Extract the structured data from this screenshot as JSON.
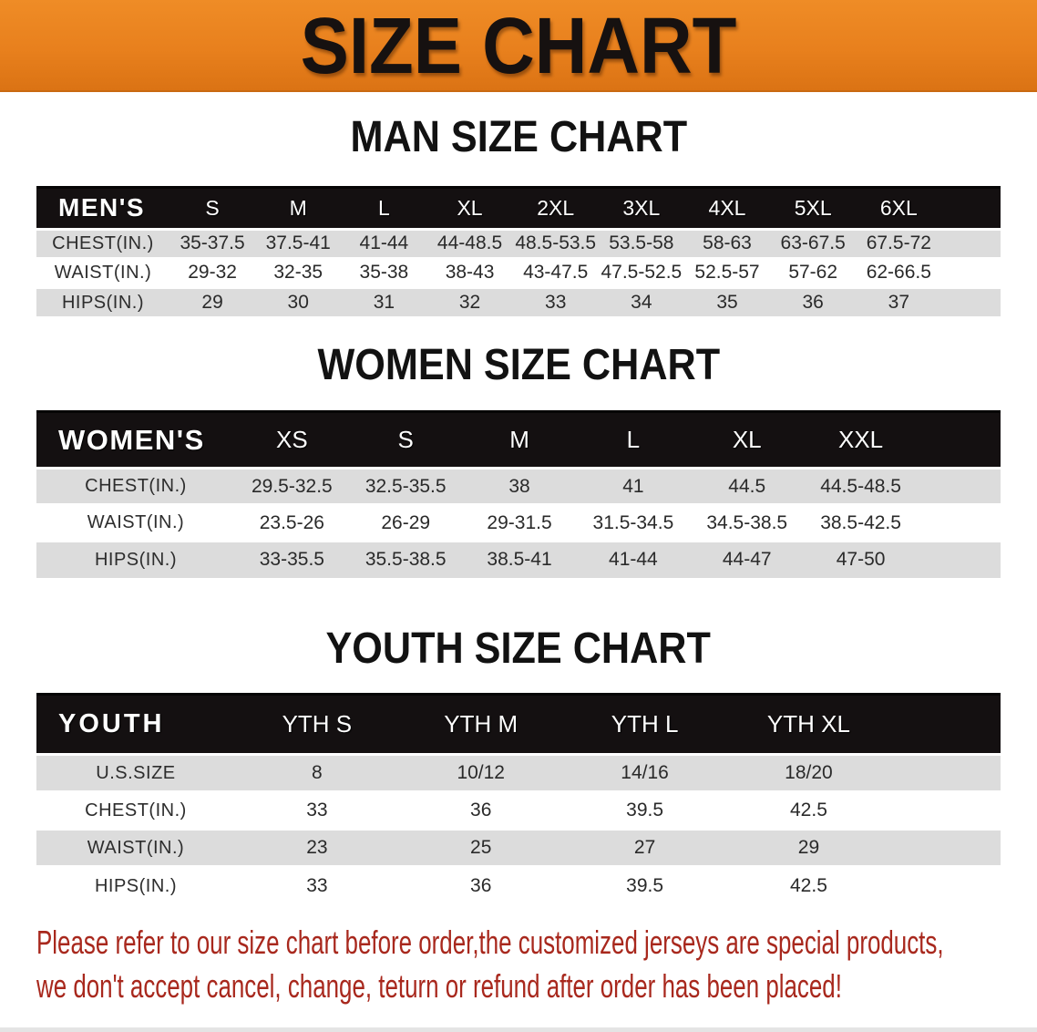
{
  "banner": {
    "title": "SIZE CHART"
  },
  "sections": {
    "man": {
      "heading": "MAN SIZE CHART",
      "header_label": "MEN'S",
      "sizes": [
        "S",
        "M",
        "L",
        "XL",
        "2XL",
        "3XL",
        "4XL",
        "5XL",
        "6XL"
      ],
      "rows": [
        {
          "label": "CHEST(IN.)",
          "values": [
            "35-37.5",
            "37.5-41",
            "41-44",
            "44-48.5",
            "48.5-53.5",
            "53.5-58",
            "58-63",
            "63-67.5",
            "67.5-72"
          ]
        },
        {
          "label": "WAIST(IN.)",
          "values": [
            "29-32",
            "32-35",
            "35-38",
            "38-43",
            "43-47.5",
            "47.5-52.5",
            "52.5-57",
            "57-62",
            "62-66.5"
          ]
        },
        {
          "label": "HIPS(IN.)",
          "values": [
            "29",
            "30",
            "31",
            "32",
            "33",
            "34",
            "35",
            "36",
            "37"
          ]
        }
      ]
    },
    "women": {
      "heading": "WOMEN SIZE CHART",
      "header_label": "WOMEN'S",
      "sizes": [
        "XS",
        "S",
        "M",
        "L",
        "XL",
        "XXL"
      ],
      "rows": [
        {
          "label": "CHEST(IN.)",
          "values": [
            "29.5-32.5",
            "32.5-35.5",
            "38",
            "41",
            "44.5",
            "44.5-48.5"
          ]
        },
        {
          "label": "WAIST(IN.)",
          "values": [
            "23.5-26",
            "26-29",
            "29-31.5",
            "31.5-34.5",
            "34.5-38.5",
            "38.5-42.5"
          ]
        },
        {
          "label": "HIPS(IN.)",
          "values": [
            "33-35.5",
            "35.5-38.5",
            "38.5-41",
            "41-44",
            "44-47",
            "47-50"
          ]
        }
      ]
    },
    "youth": {
      "heading": "YOUTH SIZE CHART",
      "header_label": "YOUTH",
      "sizes": [
        "YTH S",
        "YTH M",
        "YTH L",
        "YTH XL"
      ],
      "rows": [
        {
          "label": "U.S.SIZE",
          "values": [
            "8",
            "10/12",
            "14/16",
            "18/20"
          ]
        },
        {
          "label": "CHEST(IN.)",
          "values": [
            "33",
            "36",
            "39.5",
            "42.5"
          ]
        },
        {
          "label": "WAIST(IN.)",
          "values": [
            "23",
            "25",
            "27",
            "29"
          ]
        },
        {
          "label": "HIPS(IN.)",
          "values": [
            "33",
            "36",
            "39.5",
            "42.5"
          ]
        }
      ]
    }
  },
  "disclaimer": {
    "line1": "Please refer to our size chart before order,the customized jerseys are special products,",
    "line2": "we don't accept cancel, change, teturn or refund after order has been placed!"
  },
  "colors": {
    "banner_orange": "#e8801d",
    "header_bar_black": "#141011",
    "band_gray": "#dcdcdc",
    "disclaimer_red": "#a8281d"
  }
}
